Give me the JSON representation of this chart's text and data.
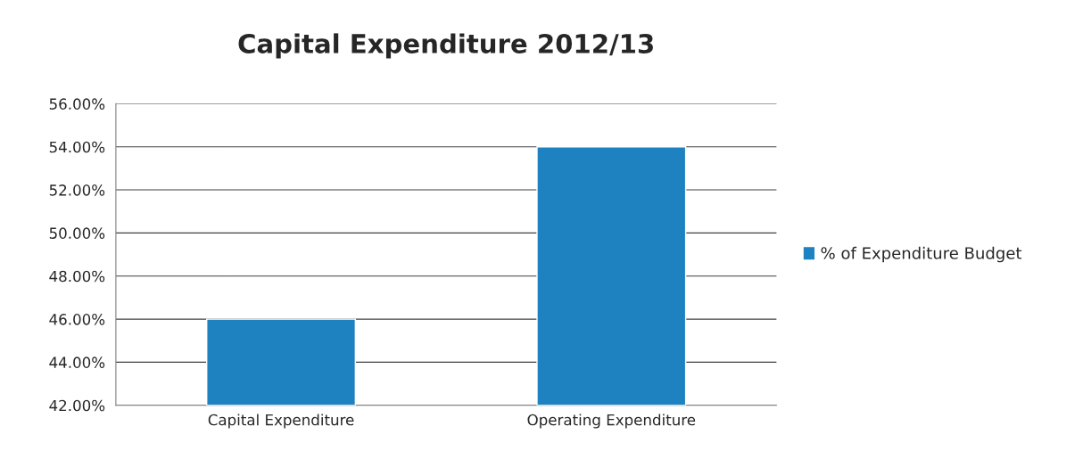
{
  "chart_data": {
    "type": "bar",
    "title": "Capital Expenditure 2012/13",
    "categories": [
      "Capital Expenditure",
      "Operating Expenditure"
    ],
    "series": [
      {
        "name": "% of Expenditure Budget",
        "color": "#1f82c0",
        "values": [
          46,
          54
        ]
      }
    ],
    "ylim": [
      42,
      56
    ],
    "yticks": [
      {
        "value": 42,
        "label": "42.00%"
      },
      {
        "value": 44,
        "label": "44.00%"
      },
      {
        "value": 46,
        "label": "46.00%"
      },
      {
        "value": 48,
        "label": "48.00%"
      },
      {
        "value": 50,
        "label": "50.00%"
      },
      {
        "value": 52,
        "label": "52.00%"
      },
      {
        "value": 54,
        "label": "54.00%"
      },
      {
        "value": 56,
        "label": "56.00%"
      }
    ],
    "grid": "y",
    "legend": "right"
  }
}
